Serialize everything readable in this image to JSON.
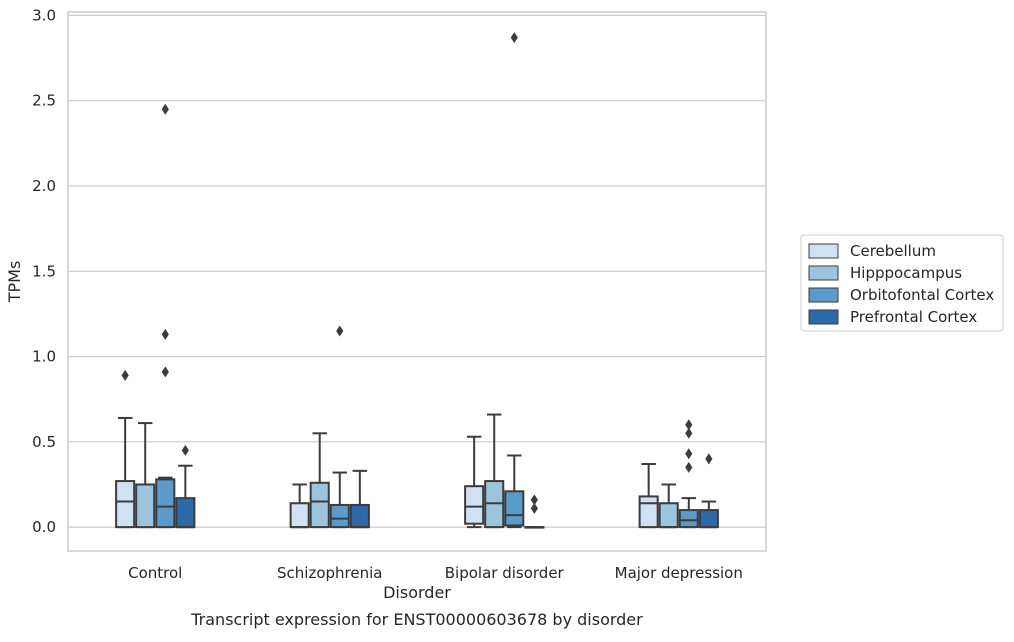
{
  "chart_data": {
    "type": "boxplot",
    "title": "",
    "caption": "Transcript expression for ENST00000603678 by disorder",
    "xlabel": "Disorder",
    "ylabel": "TPMs",
    "ylim": [
      -0.14,
      3.02
    ],
    "yticks": [
      0.0,
      0.5,
      1.0,
      1.5,
      2.0,
      2.5,
      3.0
    ],
    "ytick_labels": [
      "0.0",
      "0.5",
      "1.0",
      "1.5",
      "2.0",
      "2.5",
      "3.0"
    ],
    "grid": "horizontal",
    "legend_position": "right",
    "categories": [
      "Control",
      "Schizophrenia",
      "Bipolar disorder",
      "Major depression"
    ],
    "series": [
      {
        "name": "Cerebellum",
        "color": "#cfe1f2",
        "boxes": [
          {
            "q1": 0.0,
            "median": 0.15,
            "q3": 0.27,
            "whisker_low": 0.0,
            "whisker_high": 0.64,
            "outliers": [
              0.89
            ]
          },
          {
            "q1": 0.0,
            "median": 0.0,
            "q3": 0.14,
            "whisker_low": 0.0,
            "whisker_high": 0.25,
            "outliers": []
          },
          {
            "q1": 0.02,
            "median": 0.12,
            "q3": 0.24,
            "whisker_low": 0.0,
            "whisker_high": 0.53,
            "outliers": []
          },
          {
            "q1": 0.0,
            "median": 0.14,
            "q3": 0.18,
            "whisker_low": 0.0,
            "whisker_high": 0.37,
            "outliers": []
          }
        ]
      },
      {
        "name": "Hipppocampus",
        "color": "#9cc4dd",
        "boxes": [
          {
            "q1": 0.0,
            "median": 0.25,
            "q3": 0.25,
            "whisker_low": 0.0,
            "whisker_high": 0.61,
            "outliers": []
          },
          {
            "q1": 0.0,
            "median": 0.15,
            "q3": 0.26,
            "whisker_low": 0.0,
            "whisker_high": 0.55,
            "outliers": []
          },
          {
            "q1": 0.0,
            "median": 0.14,
            "q3": 0.27,
            "whisker_low": 0.0,
            "whisker_high": 0.66,
            "outliers": []
          },
          {
            "q1": 0.0,
            "median": 0.0,
            "q3": 0.14,
            "whisker_low": 0.0,
            "whisker_high": 0.25,
            "outliers": []
          }
        ]
      },
      {
        "name": "Orbitofontal Cortex",
        "color": "#5b9ac9",
        "boxes": [
          {
            "q1": 0.0,
            "median": 0.12,
            "q3": 0.28,
            "whisker_low": 0.0,
            "whisker_high": 0.29,
            "outliers": [
              0.91,
              1.13,
              2.45
            ]
          },
          {
            "q1": 0.0,
            "median": 0.05,
            "q3": 0.13,
            "whisker_low": 0.0,
            "whisker_high": 0.32,
            "outliers": [
              1.15
            ]
          },
          {
            "q1": 0.01,
            "median": 0.07,
            "q3": 0.21,
            "whisker_low": 0.0,
            "whisker_high": 0.42,
            "outliers": [
              2.87
            ]
          },
          {
            "q1": 0.0,
            "median": 0.04,
            "q3": 0.1,
            "whisker_low": 0.0,
            "whisker_high": 0.17,
            "outliers": [
              0.35,
              0.43,
              0.55,
              0.6
            ]
          }
        ]
      },
      {
        "name": "Prefrontal Cortex",
        "color": "#2b69a8",
        "boxes": [
          {
            "q1": 0.0,
            "median": 0.0,
            "q3": 0.17,
            "whisker_low": 0.0,
            "whisker_high": 0.36,
            "outliers": [
              0.45
            ]
          },
          {
            "q1": 0.0,
            "median": 0.0,
            "q3": 0.13,
            "whisker_low": 0.0,
            "whisker_high": 0.33,
            "outliers": []
          },
          {
            "q1": 0.0,
            "median": 0.0,
            "q3": 0.0,
            "whisker_low": 0.0,
            "whisker_high": 0.0,
            "outliers": [
              0.11,
              0.16
            ]
          },
          {
            "q1": 0.0,
            "median": 0.0,
            "q3": 0.1,
            "whisker_low": 0.0,
            "whisker_high": 0.15,
            "outliers": [
              0.4
            ]
          }
        ]
      }
    ]
  }
}
